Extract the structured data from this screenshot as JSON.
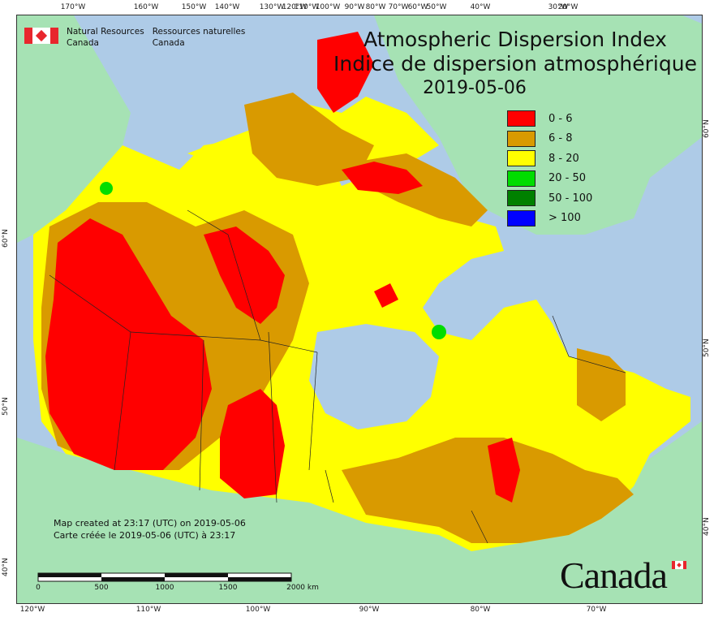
{
  "title": {
    "en": "Atmospheric Dispersion Index",
    "fr": "Indice de dispersion atmosphérique",
    "date": "2019-05-06"
  },
  "agency": {
    "en_line1": "Natural Resources",
    "en_line2": "Canada",
    "fr_line1": "Ressources naturelles",
    "fr_line2": "Canada"
  },
  "legend": [
    {
      "label": "0 - 6",
      "color": "#ff0000"
    },
    {
      "label": "6 - 8",
      "color": "#d99a00"
    },
    {
      "label": "8 - 20",
      "color": "#ffff00"
    },
    {
      "label": "20 - 50",
      "color": "#00dd00"
    },
    {
      "label": "50 - 100",
      "color": "#008000"
    },
    {
      "label": "> 100",
      "color": "#0000ff"
    }
  ],
  "credit": {
    "en": "Map created at 23:17 (UTC) on 2019-05-06",
    "fr": "Carte créée le 2019-05-06 (UTC) à 23:17"
  },
  "scale": {
    "labels": [
      "0",
      "500",
      "1000",
      "1500",
      "2000 km"
    ]
  },
  "ticks": {
    "top": [
      "170°W",
      "160°W",
      "150°W",
      "140°W",
      "130°W",
      "120°W",
      "110°W",
      "100°W",
      "90°W",
      "80°W",
      "70°W",
      "60°W",
      "50°W",
      "40°W",
      "30°W",
      "20°W"
    ],
    "bottom": [
      "120°W",
      "110°W",
      "100°W",
      "90°W",
      "80°W",
      "70°W"
    ],
    "left": [
      "60°N",
      "50°N",
      "40°N"
    ],
    "right": [
      "60°N",
      "50°N",
      "40°N"
    ]
  },
  "wordmark": "Canada",
  "colors": {
    "ocean": "#aecbe7",
    "land_outside": "#a6e2b4",
    "red": "#ff0000",
    "orange": "#d99a00",
    "yellow": "#ffff00",
    "green": "#00dd00",
    "flag_red": "#e8262d"
  }
}
